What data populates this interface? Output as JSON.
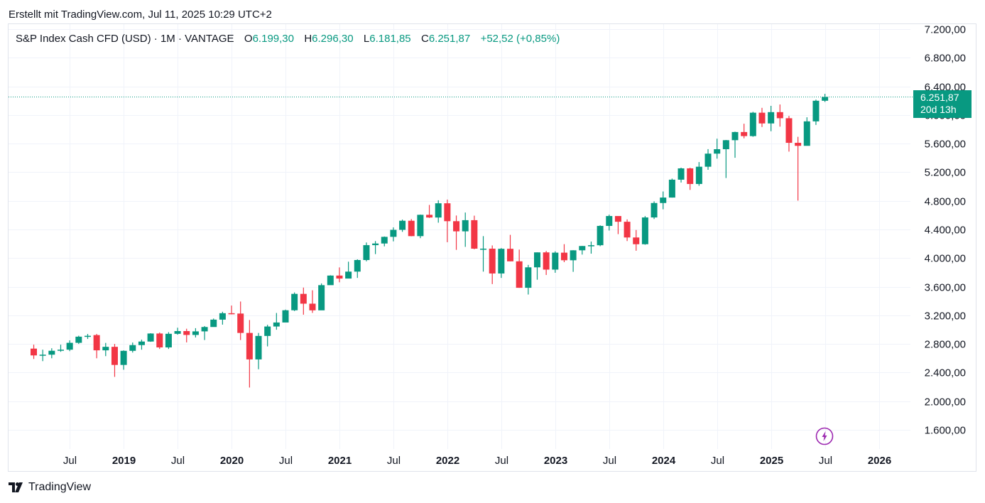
{
  "header": {
    "created_line": "Erstellt mit TradingView.com, Jul 11, 2025 10:29 UTC+2"
  },
  "legend": {
    "symbol": "S&P Index Cash CFD (USD) · 1M · VANTAGE",
    "o_label": "O",
    "o_value": "6.199,30",
    "h_label": "H",
    "h_value": "6.296,30",
    "l_label": "L",
    "l_value": "6.181,85",
    "c_label": "C",
    "c_value": "6.251,87",
    "change": "+52,52 (+0,85%)"
  },
  "price_tag": {
    "price": "6.251,87",
    "countdown": "20d 13h"
  },
  "footer": {
    "brand": "TradingView"
  },
  "colors": {
    "up": "#089981",
    "down": "#f23645",
    "grid": "#f0f3fa",
    "text": "#131722",
    "bolt": "#9c27b0"
  },
  "chart_data": {
    "type": "candlestick",
    "interval": "1M",
    "ylim": [
      1300,
      7350
    ],
    "y_ticks": [
      1600,
      2000,
      2400,
      2800,
      3200,
      3600,
      4000,
      4400,
      4800,
      5200,
      5600,
      6000,
      6400,
      6800,
      7200
    ],
    "y_tick_labels": [
      "1.600,00",
      "2.000,00",
      "2.400,00",
      "2.800,00",
      "3.200,00",
      "3.600,00",
      "4.000,00",
      "4.400,00",
      "4.800,00",
      "5.200,00",
      "5.600,00",
      "6.000,00",
      "6.400,00",
      "6.800,00",
      "7.200,00"
    ],
    "x_ticks": [
      {
        "label": "Jul",
        "bold": false,
        "index": 6
      },
      {
        "label": "2019",
        "bold": true,
        "index": 12
      },
      {
        "label": "Jul",
        "bold": false,
        "index": 18
      },
      {
        "label": "2020",
        "bold": true,
        "index": 24
      },
      {
        "label": "Jul",
        "bold": false,
        "index": 30
      },
      {
        "label": "2021",
        "bold": true,
        "index": 36
      },
      {
        "label": "Jul",
        "bold": false,
        "index": 42
      },
      {
        "label": "2022",
        "bold": true,
        "index": 48
      },
      {
        "label": "Jul",
        "bold": false,
        "index": 54
      },
      {
        "label": "2023",
        "bold": true,
        "index": 60
      },
      {
        "label": "Jul",
        "bold": false,
        "index": 66
      },
      {
        "label": "2024",
        "bold": true,
        "index": 72
      },
      {
        "label": "Jul",
        "bold": false,
        "index": 78
      },
      {
        "label": "2025",
        "bold": true,
        "index": 84
      },
      {
        "label": "Jul",
        "bold": false,
        "index": 90
      },
      {
        "label": "2026",
        "bold": true,
        "index": 96
      }
    ],
    "last_price": 6251.87,
    "candles": [
      {
        "t": "2018-03",
        "o": 2735,
        "h": 2790,
        "l": 2590,
        "c": 2640
      },
      {
        "t": "2018-04",
        "o": 2640,
        "h": 2720,
        "l": 2560,
        "c": 2650
      },
      {
        "t": "2018-05",
        "o": 2650,
        "h": 2740,
        "l": 2600,
        "c": 2705
      },
      {
        "t": "2018-06",
        "o": 2705,
        "h": 2790,
        "l": 2690,
        "c": 2720
      },
      {
        "t": "2018-07",
        "o": 2720,
        "h": 2850,
        "l": 2700,
        "c": 2816
      },
      {
        "t": "2018-08",
        "o": 2816,
        "h": 2915,
        "l": 2800,
        "c": 2902
      },
      {
        "t": "2018-09",
        "o": 2902,
        "h": 2940,
        "l": 2870,
        "c": 2914
      },
      {
        "t": "2018-10",
        "o": 2924,
        "h": 2940,
        "l": 2600,
        "c": 2711
      },
      {
        "t": "2018-11",
        "o": 2711,
        "h": 2815,
        "l": 2630,
        "c": 2760
      },
      {
        "t": "2018-12",
        "o": 2760,
        "h": 2800,
        "l": 2340,
        "c": 2507
      },
      {
        "t": "2019-01",
        "o": 2507,
        "h": 2710,
        "l": 2440,
        "c": 2704
      },
      {
        "t": "2019-02",
        "o": 2704,
        "h": 2820,
        "l": 2680,
        "c": 2784
      },
      {
        "t": "2019-03",
        "o": 2784,
        "h": 2860,
        "l": 2720,
        "c": 2834
      },
      {
        "t": "2019-04",
        "o": 2834,
        "h": 2950,
        "l": 2830,
        "c": 2946
      },
      {
        "t": "2019-05",
        "o": 2946,
        "h": 2960,
        "l": 2730,
        "c": 2752
      },
      {
        "t": "2019-06",
        "o": 2752,
        "h": 2965,
        "l": 2730,
        "c": 2942
      },
      {
        "t": "2019-07",
        "o": 2942,
        "h": 3027,
        "l": 2930,
        "c": 2980
      },
      {
        "t": "2019-08",
        "o": 2980,
        "h": 3013,
        "l": 2822,
        "c": 2926
      },
      {
        "t": "2019-09",
        "o": 2926,
        "h": 3021,
        "l": 2891,
        "c": 2976
      },
      {
        "t": "2019-10",
        "o": 2976,
        "h": 3050,
        "l": 2855,
        "c": 3037
      },
      {
        "t": "2019-11",
        "o": 3037,
        "h": 3155,
        "l": 3050,
        "c": 3140
      },
      {
        "t": "2019-12",
        "o": 3140,
        "h": 3250,
        "l": 3070,
        "c": 3230
      },
      {
        "t": "2020-01",
        "o": 3230,
        "h": 3337,
        "l": 3214,
        "c": 3225
      },
      {
        "t": "2020-02",
        "o": 3225,
        "h": 3393,
        "l": 2855,
        "c": 2954
      },
      {
        "t": "2020-03",
        "o": 2954,
        "h": 3135,
        "l": 2191,
        "c": 2584
      },
      {
        "t": "2020-04",
        "o": 2584,
        "h": 2954,
        "l": 2447,
        "c": 2912
      },
      {
        "t": "2020-05",
        "o": 2912,
        "h": 3068,
        "l": 2766,
        "c": 3044
      },
      {
        "t": "2020-06",
        "o": 3044,
        "h": 3233,
        "l": 2999,
        "c": 3100
      },
      {
        "t": "2020-07",
        "o": 3100,
        "h": 3280,
        "l": 3115,
        "c": 3271
      },
      {
        "t": "2020-08",
        "o": 3271,
        "h": 3520,
        "l": 3260,
        "c": 3500
      },
      {
        "t": "2020-09",
        "o": 3500,
        "h": 3588,
        "l": 3209,
        "c": 3363
      },
      {
        "t": "2020-10",
        "o": 3363,
        "h": 3550,
        "l": 3234,
        "c": 3270
      },
      {
        "t": "2020-11",
        "o": 3270,
        "h": 3646,
        "l": 3280,
        "c": 3622
      },
      {
        "t": "2020-12",
        "o": 3622,
        "h": 3760,
        "l": 3633,
        "c": 3756
      },
      {
        "t": "2021-01",
        "o": 3756,
        "h": 3870,
        "l": 3662,
        "c": 3714
      },
      {
        "t": "2021-02",
        "o": 3714,
        "h": 3950,
        "l": 3725,
        "c": 3811
      },
      {
        "t": "2021-03",
        "o": 3811,
        "h": 3983,
        "l": 3723,
        "c": 3973
      },
      {
        "t": "2021-04",
        "o": 3973,
        "h": 4218,
        "l": 3955,
        "c": 4181
      },
      {
        "t": "2021-05",
        "o": 4181,
        "h": 4238,
        "l": 4056,
        "c": 4204
      },
      {
        "t": "2021-06",
        "o": 4204,
        "h": 4302,
        "l": 4164,
        "c": 4297
      },
      {
        "t": "2021-07",
        "o": 4297,
        "h": 4429,
        "l": 4234,
        "c": 4395
      },
      {
        "t": "2021-08",
        "o": 4395,
        "h": 4538,
        "l": 4367,
        "c": 4522
      },
      {
        "t": "2021-09",
        "o": 4522,
        "h": 4545,
        "l": 4305,
        "c": 4307
      },
      {
        "t": "2021-10",
        "o": 4307,
        "h": 4608,
        "l": 4279,
        "c": 4605
      },
      {
        "t": "2021-11",
        "o": 4605,
        "h": 4743,
        "l": 4561,
        "c": 4567
      },
      {
        "t": "2021-12",
        "o": 4567,
        "h": 4808,
        "l": 4495,
        "c": 4766
      },
      {
        "t": "2022-01",
        "o": 4766,
        "h": 4818,
        "l": 4222,
        "c": 4516
      },
      {
        "t": "2022-02",
        "o": 4516,
        "h": 4595,
        "l": 4115,
        "c": 4374
      },
      {
        "t": "2022-03",
        "o": 4374,
        "h": 4637,
        "l": 4157,
        "c": 4530
      },
      {
        "t": "2022-04",
        "o": 4530,
        "h": 4593,
        "l": 4124,
        "c": 4132
      },
      {
        "t": "2022-05",
        "o": 4132,
        "h": 4307,
        "l": 3811,
        "c": 4132
      },
      {
        "t": "2022-06",
        "o": 4132,
        "h": 4177,
        "l": 3637,
        "c": 3785
      },
      {
        "t": "2022-07",
        "o": 3785,
        "h": 4140,
        "l": 3723,
        "c": 4130
      },
      {
        "t": "2022-08",
        "o": 4130,
        "h": 4325,
        "l": 3955,
        "c": 3955
      },
      {
        "t": "2022-09",
        "o": 3955,
        "h": 4119,
        "l": 3584,
        "c": 3585
      },
      {
        "t": "2022-10",
        "o": 3585,
        "h": 3905,
        "l": 3491,
        "c": 3871
      },
      {
        "t": "2022-11",
        "o": 3871,
        "h": 4080,
        "l": 3698,
        "c": 4080
      },
      {
        "t": "2022-12",
        "o": 4080,
        "h": 4100,
        "l": 3764,
        "c": 3839
      },
      {
        "t": "2023-01",
        "o": 3839,
        "h": 4095,
        "l": 3795,
        "c": 4076
      },
      {
        "t": "2023-02",
        "o": 4076,
        "h": 4195,
        "l": 3943,
        "c": 3970
      },
      {
        "t": "2023-03",
        "o": 3970,
        "h": 4110,
        "l": 3808,
        "c": 4109
      },
      {
        "t": "2023-04",
        "o": 4109,
        "h": 4170,
        "l": 4049,
        "c": 4169
      },
      {
        "t": "2023-05",
        "o": 4169,
        "h": 4231,
        "l": 4062,
        "c": 4180
      },
      {
        "t": "2023-06",
        "o": 4180,
        "h": 4458,
        "l": 4166,
        "c": 4450
      },
      {
        "t": "2023-07",
        "o": 4450,
        "h": 4607,
        "l": 4385,
        "c": 4588
      },
      {
        "t": "2023-08",
        "o": 4588,
        "h": 4584,
        "l": 4335,
        "c": 4508
      },
      {
        "t": "2023-09",
        "o": 4508,
        "h": 4541,
        "l": 4238,
        "c": 4288
      },
      {
        "t": "2023-10",
        "o": 4288,
        "h": 4393,
        "l": 4103,
        "c": 4194
      },
      {
        "t": "2023-11",
        "o": 4194,
        "h": 4587,
        "l": 4187,
        "c": 4568
      },
      {
        "t": "2023-12",
        "o": 4568,
        "h": 4793,
        "l": 4546,
        "c": 4770
      },
      {
        "t": "2024-01",
        "o": 4770,
        "h": 4931,
        "l": 4682,
        "c": 4846
      },
      {
        "t": "2024-02",
        "o": 4846,
        "h": 5111,
        "l": 4845,
        "c": 5096
      },
      {
        "t": "2024-03",
        "o": 5096,
        "h": 5264,
        "l": 5056,
        "c": 5254
      },
      {
        "t": "2024-04",
        "o": 5254,
        "h": 5263,
        "l": 4953,
        "c": 5036
      },
      {
        "t": "2024-05",
        "o": 5036,
        "h": 5342,
        "l": 5011,
        "c": 5277
      },
      {
        "t": "2024-06",
        "o": 5277,
        "h": 5523,
        "l": 5234,
        "c": 5460
      },
      {
        "t": "2024-07",
        "o": 5460,
        "h": 5669,
        "l": 5390,
        "c": 5522
      },
      {
        "t": "2024-08",
        "o": 5522,
        "h": 5651,
        "l": 5119,
        "c": 5648
      },
      {
        "t": "2024-09",
        "o": 5648,
        "h": 5767,
        "l": 5402,
        "c": 5762
      },
      {
        "t": "2024-10",
        "o": 5762,
        "h": 5878,
        "l": 5674,
        "c": 5705
      },
      {
        "t": "2024-11",
        "o": 5705,
        "h": 6044,
        "l": 5696,
        "c": 6032
      },
      {
        "t": "2024-12",
        "o": 6032,
        "h": 6100,
        "l": 5832,
        "c": 5882
      },
      {
        "t": "2025-01",
        "o": 5882,
        "h": 6128,
        "l": 5773,
        "c": 6040
      },
      {
        "t": "2025-02",
        "o": 6040,
        "h": 6147,
        "l": 5837,
        "c": 5955
      },
      {
        "t": "2025-03",
        "o": 5955,
        "h": 5987,
        "l": 5488,
        "c": 5611
      },
      {
        "t": "2025-04",
        "o": 5611,
        "h": 5695,
        "l": 4803,
        "c": 5569
      },
      {
        "t": "2025-05",
        "o": 5569,
        "h": 5968,
        "l": 5578,
        "c": 5911
      },
      {
        "t": "2025-06",
        "o": 5911,
        "h": 6215,
        "l": 5861,
        "c": 6199
      },
      {
        "t": "2025-07",
        "o": 6199,
        "h": 6296,
        "l": 6182,
        "c": 6252
      }
    ]
  }
}
